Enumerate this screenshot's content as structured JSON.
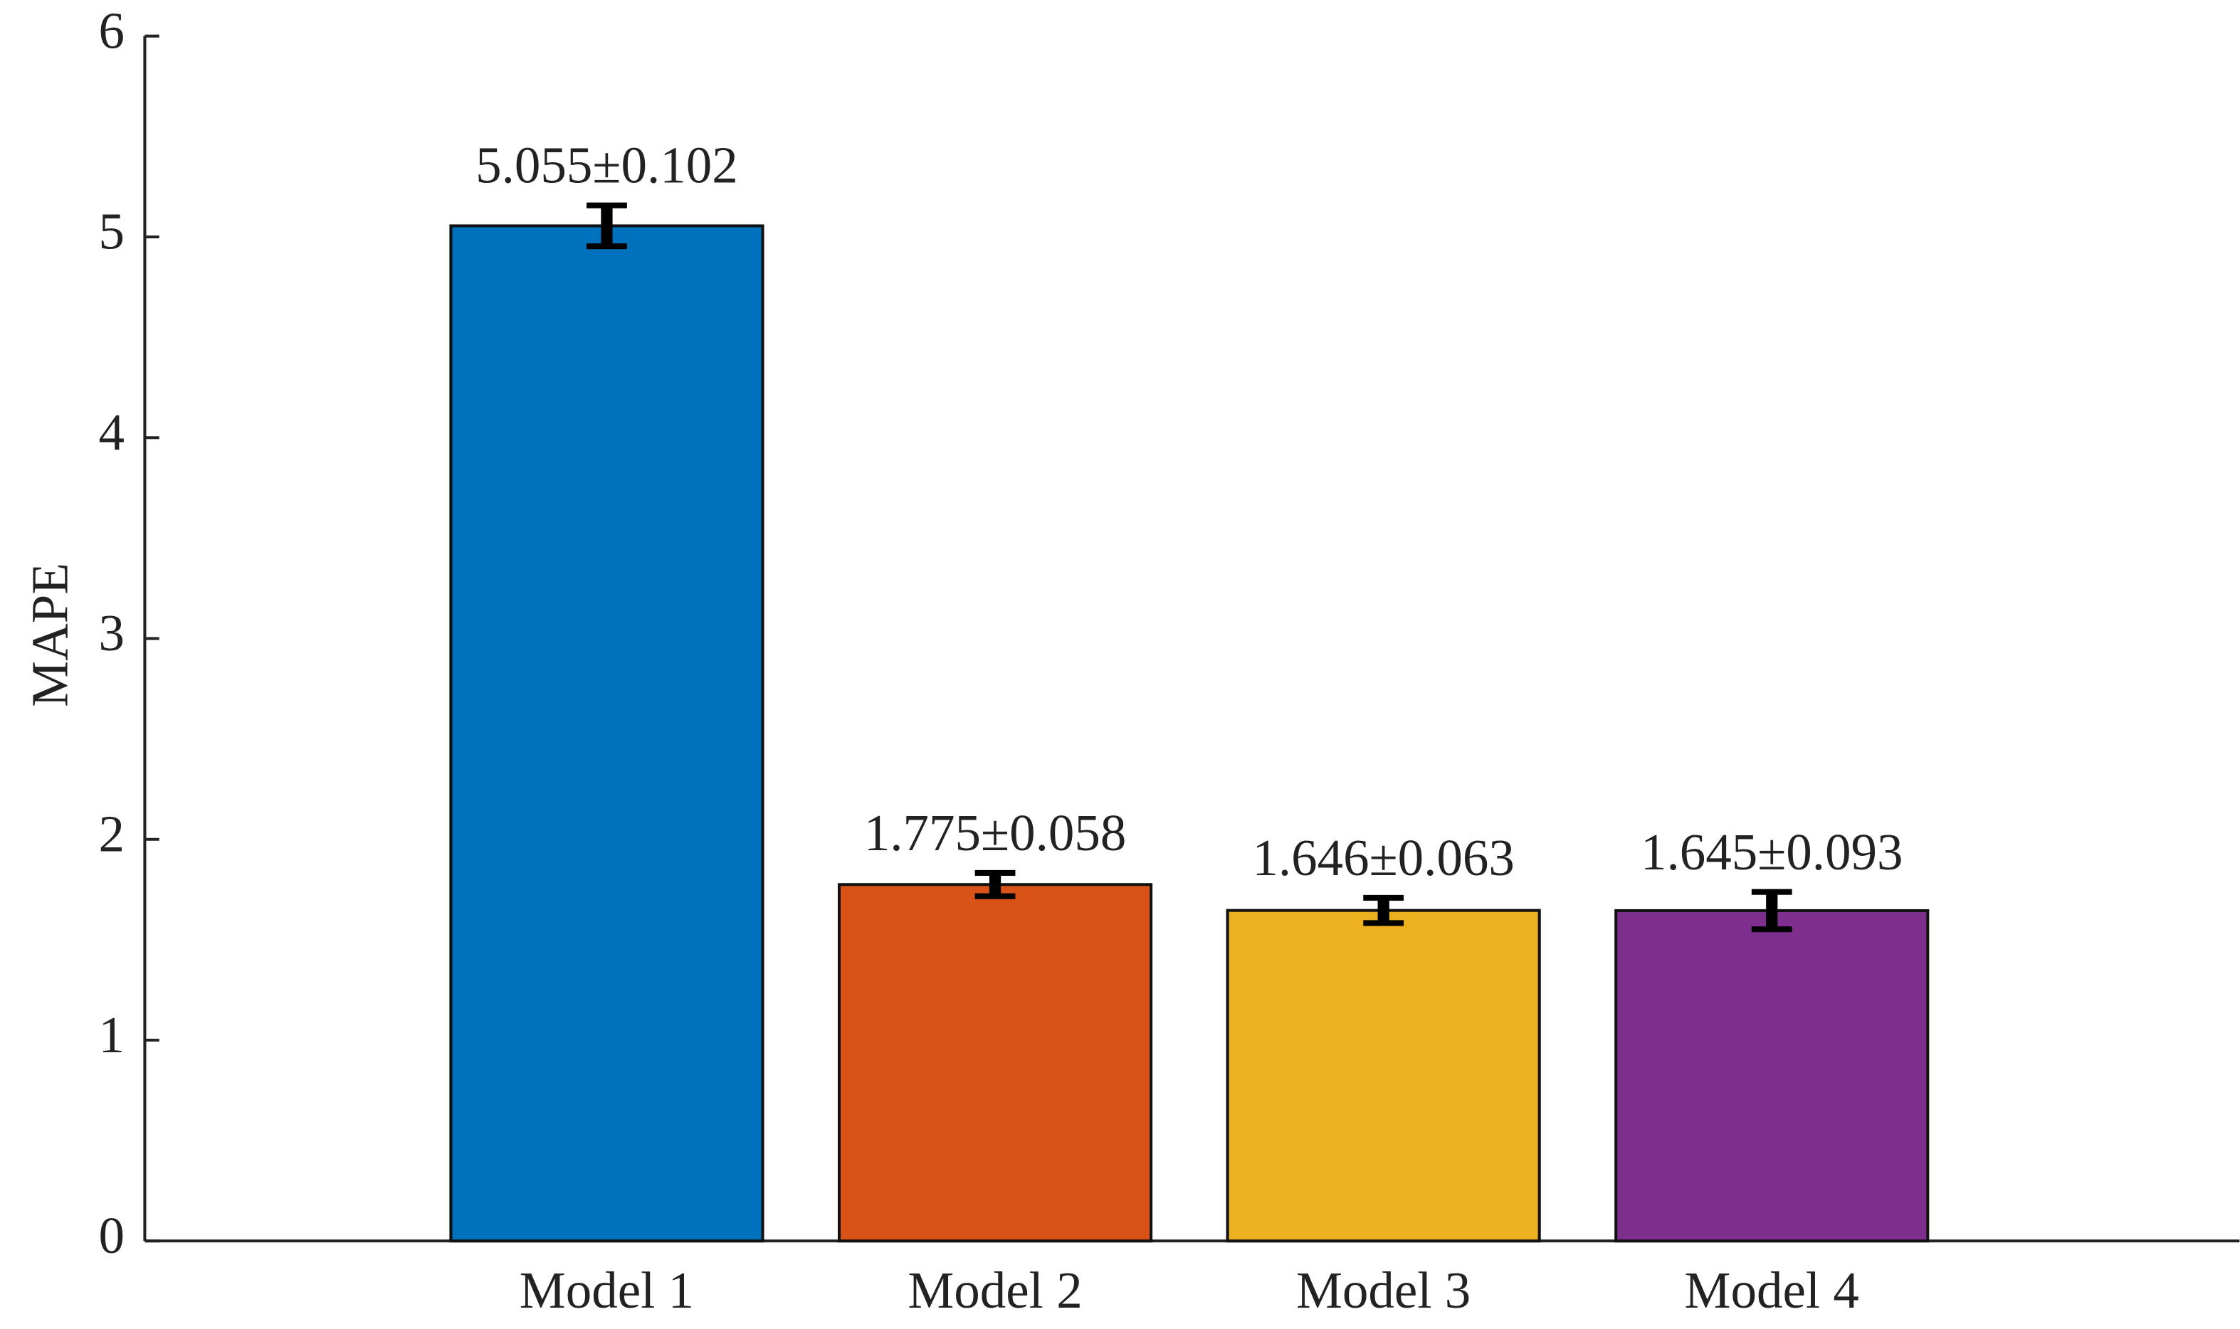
{
  "chart_data": {
    "type": "bar",
    "y_label": "MAPE",
    "categories": [
      "Model 1",
      "Model 2",
      "Model 3",
      "Model 4"
    ],
    "values": [
      5.055,
      1.775,
      1.646,
      1.645
    ],
    "errors": [
      0.102,
      0.058,
      0.063,
      0.093
    ],
    "value_labels": [
      "5.055±0.102",
      "1.775±0.058",
      "1.646±0.063",
      "1.645±0.093"
    ],
    "colors": [
      "#0072bd",
      "#d95319",
      "#edb120",
      "#7e2f8e"
    ],
    "ylim": [
      0,
      6
    ],
    "yticks": [
      0,
      1,
      2,
      3,
      4,
      5,
      6
    ],
    "grid": false
  }
}
